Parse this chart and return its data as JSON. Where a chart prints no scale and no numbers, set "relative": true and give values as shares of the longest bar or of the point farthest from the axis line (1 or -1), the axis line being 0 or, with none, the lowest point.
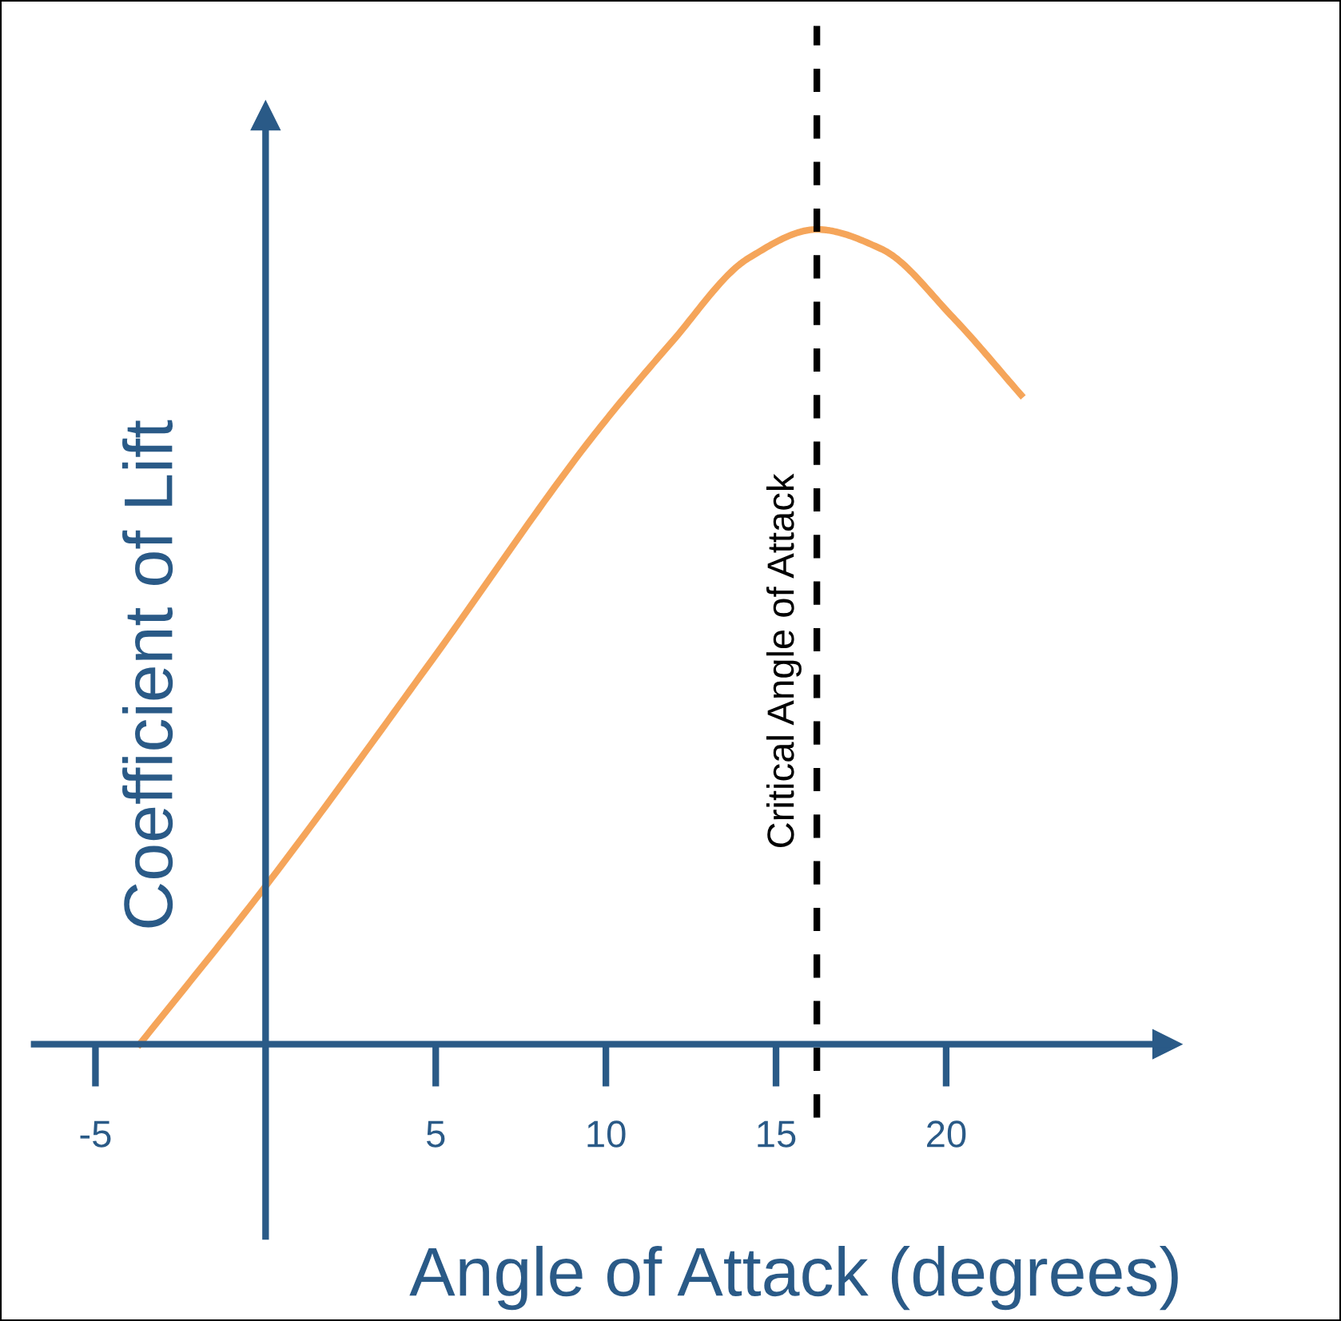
{
  "chart_data": {
    "type": "line",
    "xlabel": "Angle of Attack (degrees)",
    "ylabel": "Coefficient of Lift",
    "relative": true,
    "x": [
      -3.7,
      0,
      4.9,
      9.6,
      11.9,
      14.2,
      16.2,
      18.1,
      20.2,
      22.2
    ],
    "series": [
      {
        "color": "#f5a55a",
        "values": [
          0.0,
          0.194,
          0.472,
          0.745,
          0.86,
          0.965,
          1.0,
          0.976,
          0.892,
          0.797
        ]
      }
    ],
    "xlim": [
      -6.8,
      26.5
    ],
    "xticks": [
      -5,
      5,
      10,
      15,
      20
    ],
    "ref_lines": [
      {
        "axis": "x",
        "value": 0,
        "color": "#2a5a87",
        "line_style": "solid"
      },
      {
        "axis": "x",
        "value": 16.2,
        "label": "Critical Angle of Attack",
        "color": "#000000",
        "line_style": "dashed"
      }
    ],
    "grid": false,
    "marker": "none",
    "line_style": "solid"
  }
}
